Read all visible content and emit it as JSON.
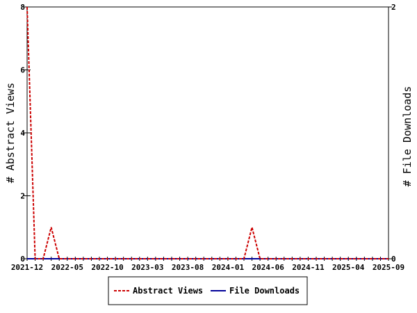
{
  "chart_data": {
    "type": "line",
    "x_labels": [
      "2021-12",
      "2022-05",
      "2022-10",
      "2023-03",
      "2023-08",
      "2024-01",
      "2024-06",
      "2024-11",
      "2025-04",
      "2025-09"
    ],
    "x": [
      "2021-12",
      "2022-01",
      "2022-02",
      "2022-03",
      "2022-04",
      "2022-05",
      "2022-06",
      "2022-07",
      "2022-08",
      "2022-09",
      "2022-10",
      "2022-11",
      "2022-12",
      "2023-01",
      "2023-02",
      "2023-03",
      "2023-04",
      "2023-05",
      "2023-06",
      "2023-07",
      "2023-08",
      "2023-09",
      "2023-10",
      "2023-11",
      "2023-12",
      "2024-01",
      "2024-02",
      "2024-03",
      "2024-04",
      "2024-05",
      "2024-06",
      "2024-07",
      "2024-08",
      "2024-09",
      "2024-10",
      "2024-11",
      "2024-12",
      "2025-01",
      "2025-02",
      "2025-03",
      "2025-04",
      "2025-05",
      "2025-06",
      "2025-07",
      "2025-08",
      "2025-09"
    ],
    "series": [
      {
        "name": "Abstract Views",
        "axis": "left",
        "color": "#cc0000",
        "style": "dashed",
        "values": [
          8,
          0,
          0,
          1,
          0,
          0,
          0,
          0,
          0,
          0,
          0,
          0,
          0,
          0,
          0,
          0,
          0,
          0,
          0,
          0,
          0,
          0,
          0,
          0,
          0,
          0,
          0,
          0,
          1,
          0,
          0,
          0,
          0,
          0,
          0,
          0,
          0,
          0,
          0,
          0,
          0,
          0,
          0,
          0,
          0,
          0
        ]
      },
      {
        "name": "File Downloads",
        "axis": "right",
        "color": "#000099",
        "style": "solid",
        "values": [
          0,
          0,
          0,
          0,
          0,
          0,
          0,
          0,
          0,
          0,
          0,
          0,
          0,
          0,
          0,
          0,
          0,
          0,
          0,
          0,
          0,
          0,
          0,
          0,
          0,
          0,
          0,
          0,
          0,
          0,
          0,
          0,
          0,
          0,
          0,
          0,
          0,
          0,
          0,
          0,
          0,
          0,
          0,
          0,
          0,
          0
        ]
      }
    ],
    "ylabel_left": "# Abstract Views",
    "ylabel_right": "# File Downloads",
    "ylim_left": [
      0,
      8
    ],
    "yticks_left": [
      0,
      2,
      4,
      6,
      8
    ],
    "ylim_right": [
      0,
      2
    ],
    "yticks_right": [
      0,
      2
    ],
    "legend_position": "bottom-center",
    "grid": false
  }
}
